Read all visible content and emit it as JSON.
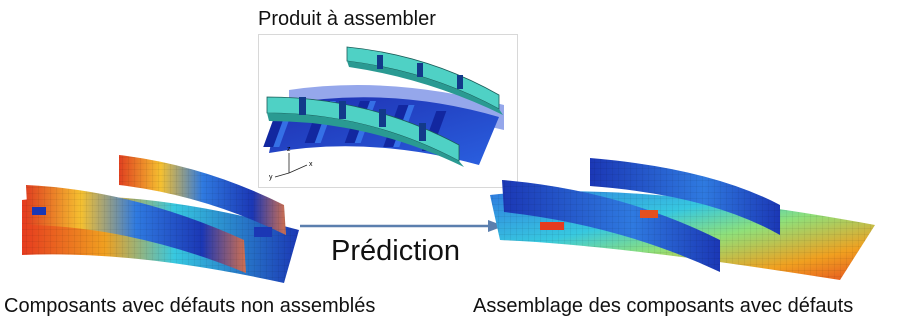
{
  "title": "Produit à assembler",
  "arrow_label": "Prédiction",
  "left_caption": "Composants avec défauts non assemblés",
  "right_caption": "Assemblage des composants avec défauts",
  "axes": {
    "z": "z",
    "x": "x",
    "y": "y"
  },
  "colors": {
    "product_blue": "#1f3fd1",
    "product_stiffener": "#4fd1c5",
    "deformation_red": "#e63b1f",
    "deformation_blue": "#1b37b5",
    "arrow": "#5b7fae"
  }
}
